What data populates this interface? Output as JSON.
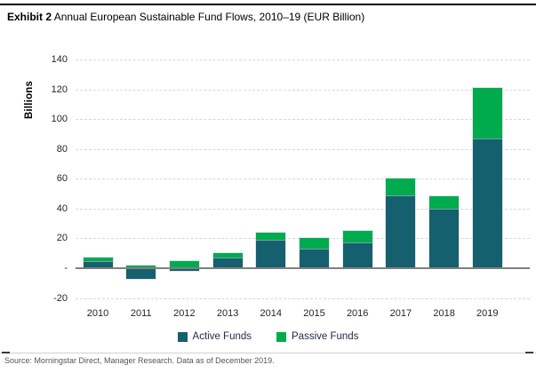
{
  "header": {
    "exhibit_label": "Exhibit 2",
    "exhibit_title": " Annual European Sustainable Fund Flows, 2010–19 (EUR Billion)"
  },
  "footer": {
    "source": "Source: Morningstar Direct, Manager Research. Data as of December 2019."
  },
  "colors": {
    "active": "#15606F",
    "passive": "#00AB4E",
    "gridline": "#D9D9D9",
    "zero_line": "#7F7F7F"
  },
  "chart_data": {
    "type": "bar",
    "stacked": true,
    "title": "Annual European Sustainable Fund Flows, 2010–19 (EUR Billion)",
    "xlabel": "",
    "ylabel": "Billions",
    "categories": [
      "2010",
      "2011",
      "2012",
      "2013",
      "2014",
      "2015",
      "2016",
      "2017",
      "2018",
      "2019"
    ],
    "series": [
      {
        "name": "Active Funds",
        "color": "#15606F",
        "values": [
          5,
          -7,
          -2,
          7,
          19,
          13,
          17,
          49,
          40,
          87
        ]
      },
      {
        "name": "Passive Funds",
        "color": "#00AB4E",
        "values": [
          2,
          2,
          5,
          3,
          5,
          7,
          8,
          11,
          8,
          34
        ]
      }
    ],
    "totals_net": [
      7,
      -5,
      3,
      10,
      24,
      20,
      25,
      60,
      48,
      121
    ],
    "ylim": [
      -20,
      140
    ],
    "y_ticks": [
      {
        "value": 140,
        "label": "140"
      },
      {
        "value": 120,
        "label": "120"
      },
      {
        "value": 100,
        "label": "100"
      },
      {
        "value": 80,
        "label": "80"
      },
      {
        "value": 60,
        "label": "60"
      },
      {
        "value": 40,
        "label": "40"
      },
      {
        "value": 20,
        "label": "20"
      },
      {
        "value": 0,
        "label": "-"
      },
      {
        "value": -20,
        "label": "-20"
      }
    ],
    "grid": "dashed-horizontal",
    "legend_position": "bottom"
  }
}
